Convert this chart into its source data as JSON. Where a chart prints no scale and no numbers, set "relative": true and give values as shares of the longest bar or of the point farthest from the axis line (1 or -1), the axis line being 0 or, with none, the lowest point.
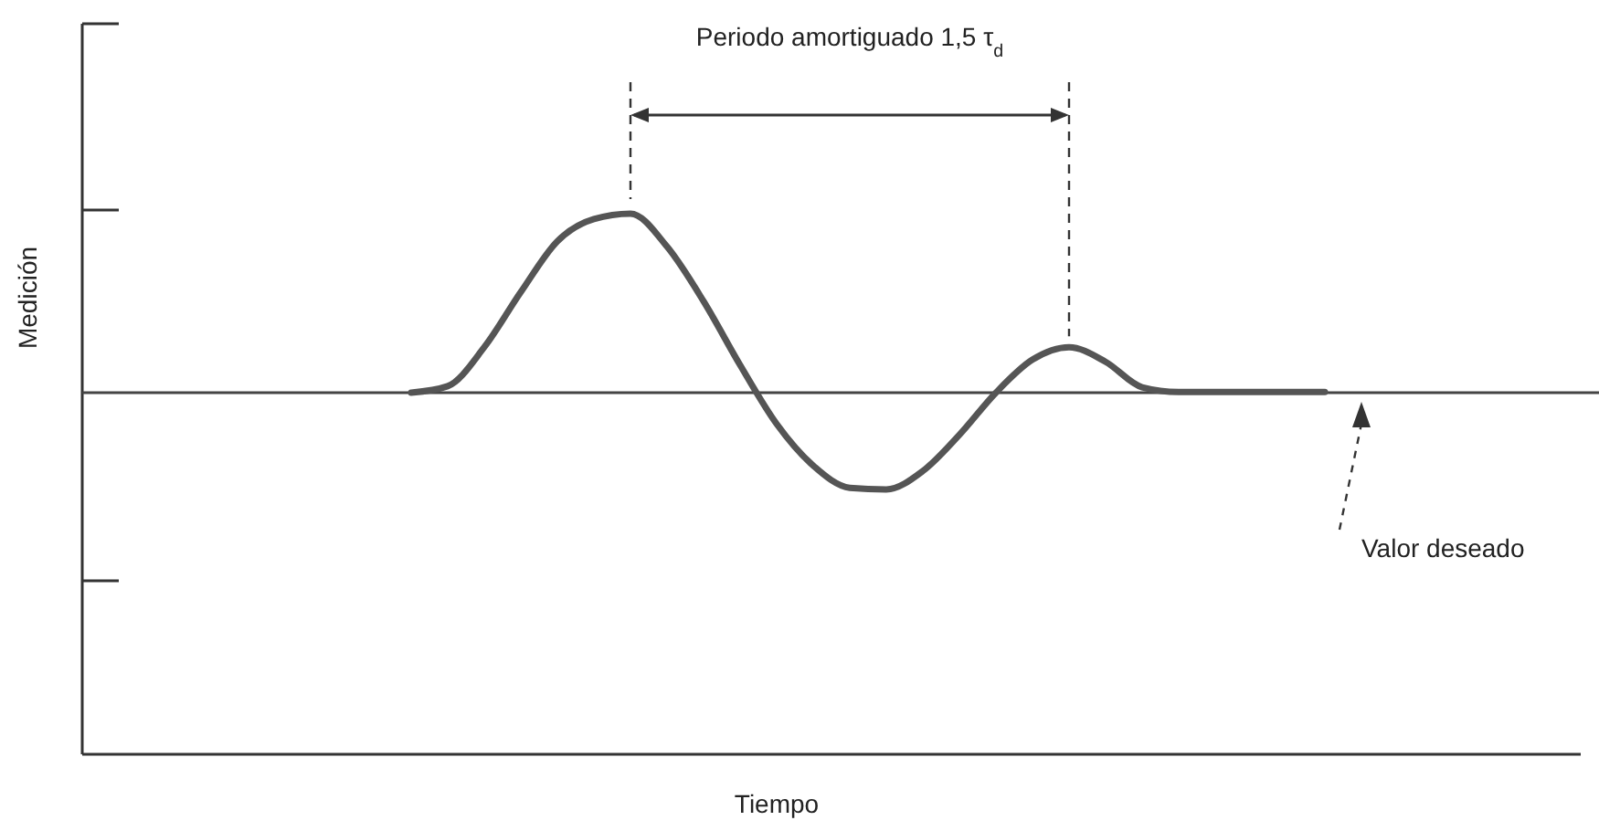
{
  "chart_data": {
    "type": "line",
    "relative": true,
    "xlabel": "Tiempo",
    "ylabel": "Medición",
    "categories": [
      null,
      null,
      null,
      null,
      null,
      null,
      null,
      null,
      null,
      null,
      null,
      null,
      null,
      null,
      null,
      null,
      null,
      null,
      null,
      null,
      null,
      null,
      null,
      null,
      null,
      null,
      null,
      null,
      null,
      null,
      null,
      null,
      null,
      null,
      null,
      null,
      null,
      null,
      null,
      null,
      null,
      null
    ],
    "series": [
      {
        "color": "#555555",
        "values": [
          null,
          null,
          null,
          null,
          null,
          null,
          null,
          null,
          null,
          0.669,
          0.681,
          0.753,
          0.855,
          0.949,
          0.99,
          1,
          0.939,
          0.838,
          0.72,
          0.611,
          0.534,
          0.493,
          0.49,
          0.524,
          0.591,
          0.669,
          0.73,
          0.753,
          0.726,
          0.679,
          0.67,
          0.67,
          0.67,
          0.67,
          0.67,
          null,
          null,
          null,
          null,
          null,
          null,
          null
        ]
      }
    ],
    "ref_lines": [
      {
        "axis": "y",
        "value": 0.669,
        "label": "Valor deseado",
        "color": "#444444"
      }
    ],
    "annotations": [
      "Periodo amortiguado 1,5 τ$_{d}$"
    ],
    "marker": "none",
    "line_style": "solid"
  }
}
